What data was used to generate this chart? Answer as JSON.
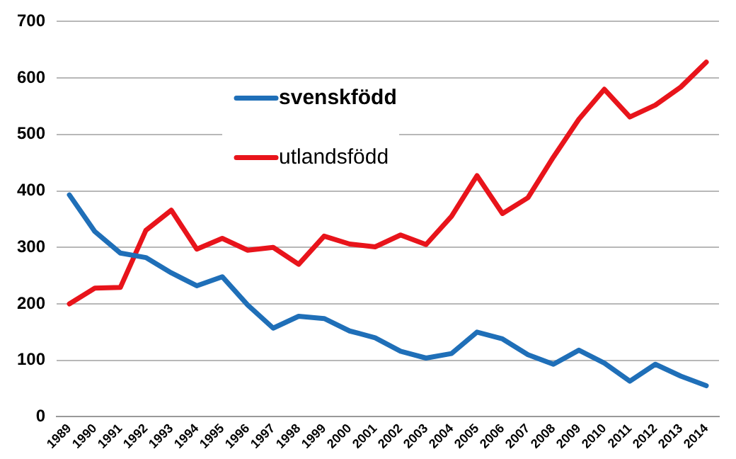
{
  "chart_data": {
    "type": "line",
    "categories": [
      "1989",
      "1990",
      "1991",
      "1992",
      "1993",
      "1994",
      "1995",
      "1996",
      "1997",
      "1998",
      "1999",
      "2000",
      "2001",
      "2002",
      "2003",
      "2004",
      "2005",
      "2006",
      "2007",
      "2008",
      "2009",
      "2010",
      "2011",
      "2012",
      "2013",
      "2014"
    ],
    "series": [
      {
        "name": "svenskfödd",
        "color": "#1f6fb8",
        "values": [
          393,
          328,
          290,
          282,
          255,
          232,
          248,
          198,
          157,
          178,
          174,
          152,
          140,
          116,
          104,
          112,
          150,
          138,
          110,
          93,
          118,
          95,
          63,
          93,
          72,
          55
        ]
      },
      {
        "name": "utlandsfödd",
        "color": "#e8141b",
        "values": [
          200,
          228,
          229,
          330,
          366,
          297,
          316,
          295,
          300,
          270,
          320,
          306,
          301,
          322,
          305,
          355,
          427,
          360,
          388,
          460,
          527,
          580,
          531,
          552,
          584,
          628
        ]
      }
    ],
    "ylim": [
      0,
      700
    ],
    "yticks": [
      0,
      100,
      200,
      300,
      400,
      500,
      600,
      700
    ],
    "grid": "y",
    "legend": "top",
    "marker": "none",
    "line_style": "solid"
  }
}
